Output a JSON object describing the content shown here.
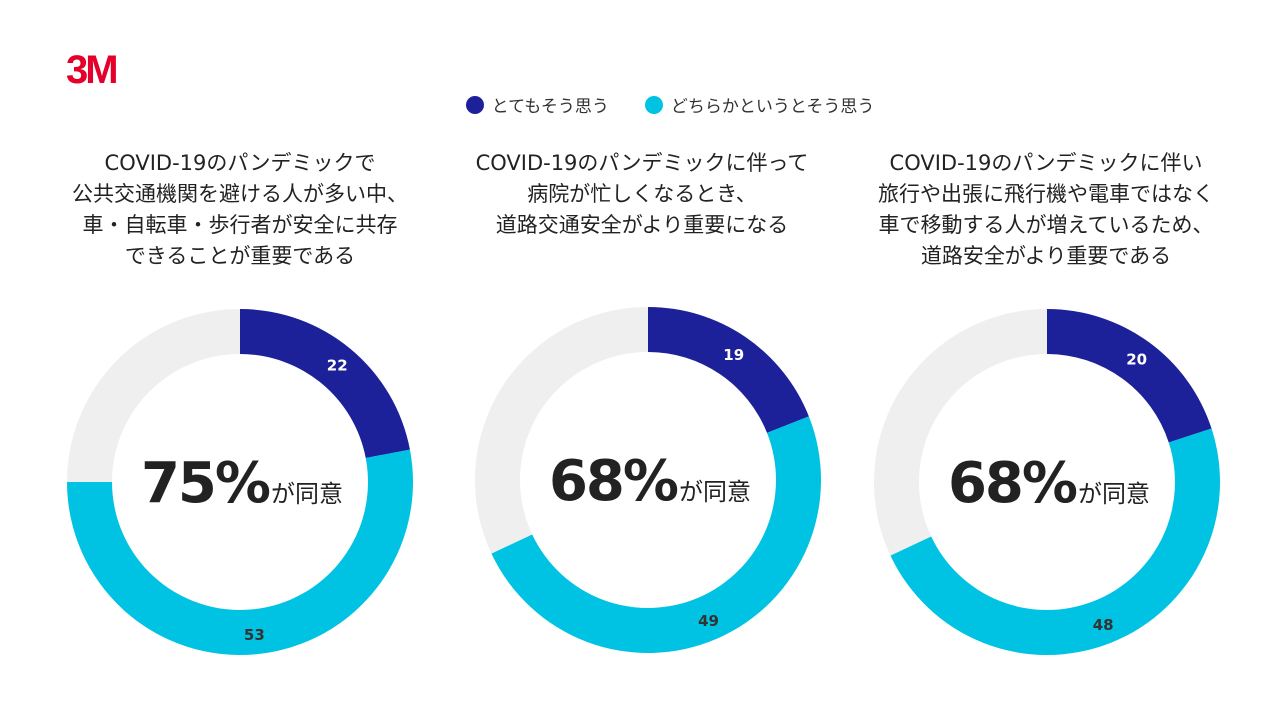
{
  "brand": {
    "logo_text": "3M",
    "logo_color": "#e4002b"
  },
  "colors": {
    "strong": "#1d2199",
    "somewhat": "#00c3e3",
    "rest": "#efefef"
  },
  "chart_data": [
    {
      "type": "pie",
      "title_lines": [
        "COVID-19のパンデミックで",
        "公共交通機関を避ける人が多い中、",
        "車・自転車・歩行者が安全に共存",
        "できることが重要である"
      ],
      "legend": [
        "とてもそう思う",
        "どちらかというとそう思う"
      ],
      "values": [
        22,
        53
      ],
      "center_value": "75%",
      "center_suffix": "が同意"
    },
    {
      "type": "pie",
      "title_lines": [
        "COVID-19のパンデミックに伴って",
        "病院が忙しくなるとき、",
        "道路交通安全がより重要になる"
      ],
      "legend": [
        "とてもそう思う",
        "どちらかというとそう思う"
      ],
      "values": [
        19,
        49
      ],
      "center_value": "68%",
      "center_suffix": "が同意"
    },
    {
      "type": "pie",
      "title_lines": [
        "COVID-19のパンデミックに伴い",
        "旅行や出張に飛行機や電車ではなく",
        "車で移動する人が増えているため、",
        "道路安全がより重要である"
      ],
      "legend": [
        "とてもそう思う",
        "どちらかというとそう思う"
      ],
      "values": [
        20,
        48
      ],
      "center_value": "68%",
      "center_suffix": "が同意"
    }
  ]
}
